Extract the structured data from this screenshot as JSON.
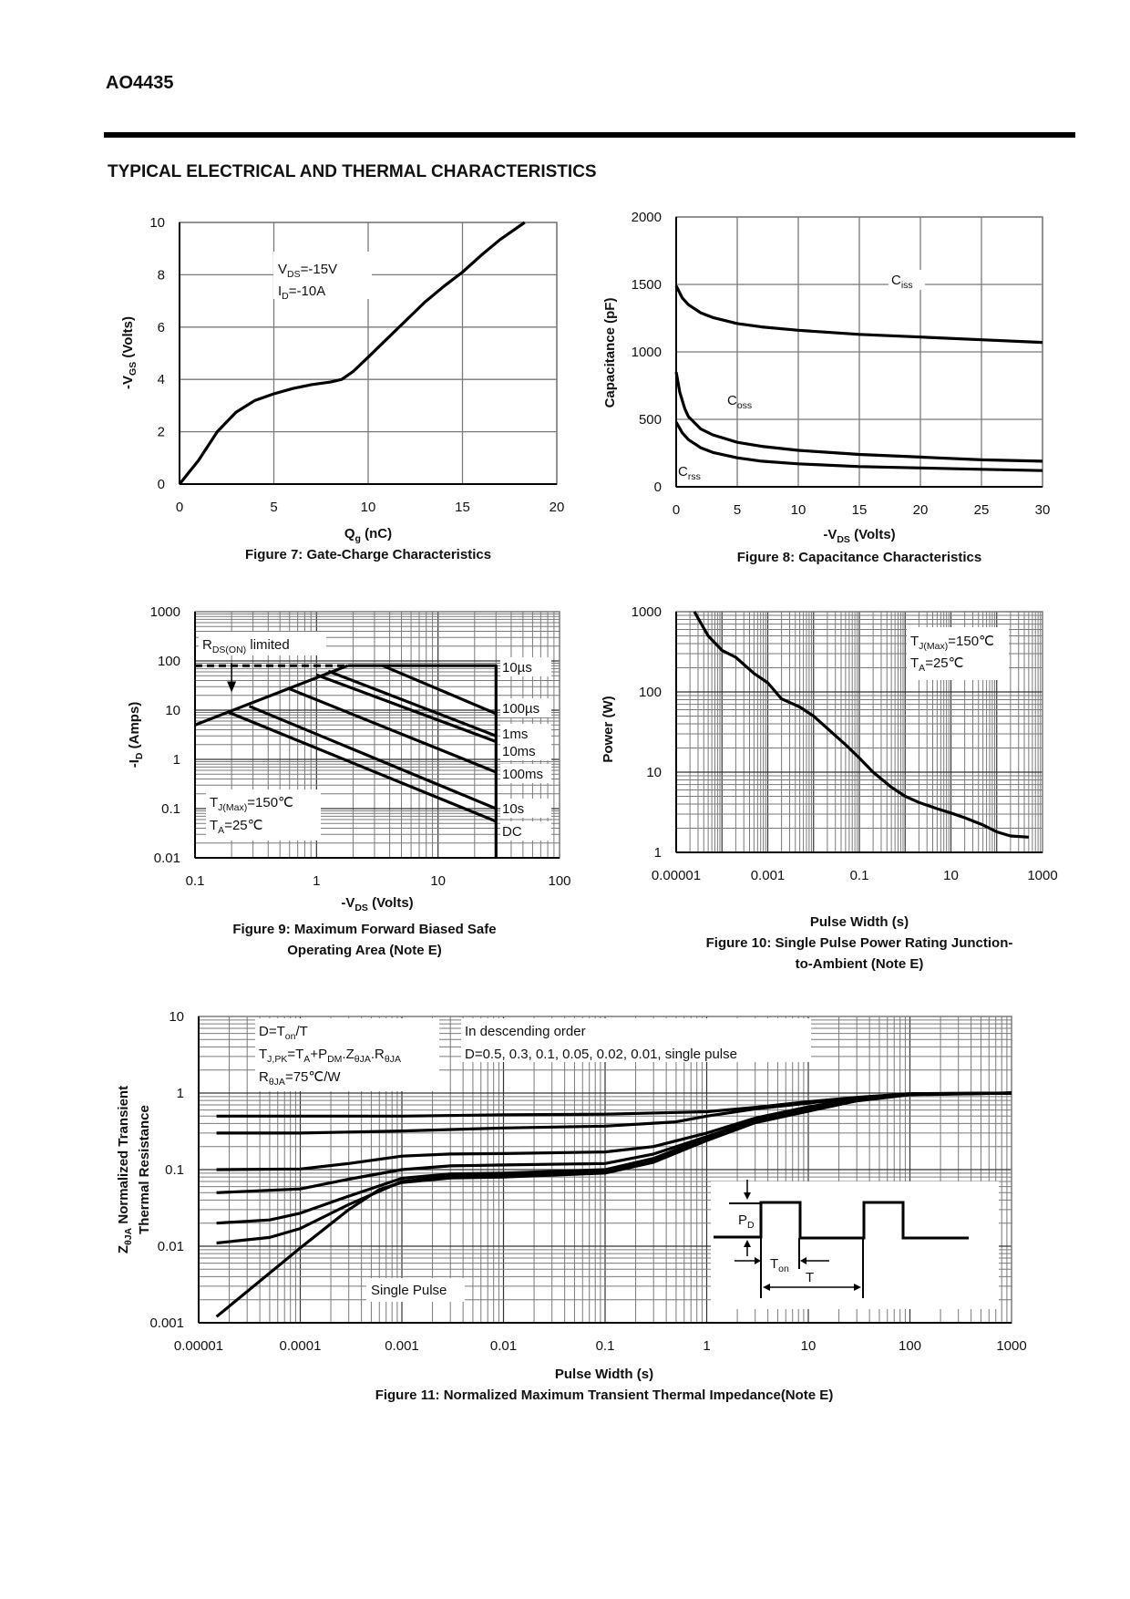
{
  "header": {
    "part_number": "AO4435",
    "section_title": "TYPICAL ELECTRICAL AND THERMAL CHARACTERISTICS"
  },
  "colors": {
    "curve": "#000000",
    "grid": "#7a7a7a",
    "background": "#ffffff"
  },
  "chart_data": [
    {
      "type": "line",
      "caption": "Figure 7: Gate-Charge Characteristics",
      "xlabel": {
        "main": "Q",
        "sub": "g",
        "rest": " (nC)"
      },
      "ylabel": {
        "main": "-V",
        "sub": "GS",
        "rest": " (Volts)"
      },
      "xscale": "linear",
      "yscale": "linear",
      "xlim": [
        0,
        20
      ],
      "ylim": [
        0,
        10
      ],
      "xticks": [
        "0",
        "5",
        "10",
        "15",
        "20"
      ],
      "xtick_values": [
        0,
        5,
        10,
        15,
        20
      ],
      "yticks": [
        "0",
        "2",
        "4",
        "6",
        "8",
        "10"
      ],
      "ytick_values": [
        0,
        2,
        4,
        6,
        8,
        10
      ],
      "grid": true,
      "annotations": [
        {
          "main": "V",
          "sub": "DS",
          "rest": "=-15V"
        },
        {
          "main": "I",
          "sub": "D",
          "rest": "=-10A"
        }
      ],
      "series": [
        {
          "x": [
            0,
            1,
            2,
            3,
            4,
            5,
            6,
            7,
            8,
            8.6,
            9.2,
            10,
            11,
            12,
            13,
            14,
            15,
            16,
            17,
            18.3
          ],
          "y": [
            0,
            0.9,
            2.0,
            2.75,
            3.2,
            3.45,
            3.65,
            3.8,
            3.9,
            4.0,
            4.3,
            4.85,
            5.55,
            6.25,
            6.95,
            7.55,
            8.1,
            8.75,
            9.35,
            10
          ]
        }
      ]
    },
    {
      "type": "line",
      "caption": "Figure 8: Capacitance Characteristics",
      "xlabel": {
        "main": "-V",
        "sub": "DS",
        "rest": " (Volts)"
      },
      "ylabel": {
        "main": "Capacitance (pF)",
        "sub": "",
        "rest": ""
      },
      "xscale": "linear",
      "yscale": "linear",
      "xlim": [
        0,
        30
      ],
      "ylim": [
        0,
        2000
      ],
      "xticks": [
        "0",
        "5",
        "10",
        "15",
        "20",
        "25",
        "30"
      ],
      "xtick_values": [
        0,
        5,
        10,
        15,
        20,
        25,
        30
      ],
      "yticks": [
        "0",
        "500",
        "1000",
        "1500",
        "2000"
      ],
      "ytick_values": [
        0,
        500,
        1000,
        1500,
        2000
      ],
      "grid": true,
      "series": [
        {
          "name": {
            "main": "C",
            "sub": "iss"
          },
          "x": [
            0,
            0.5,
            1,
            2,
            3,
            5,
            7,
            10,
            15,
            20,
            25,
            30
          ],
          "y": [
            1490,
            1400,
            1350,
            1290,
            1255,
            1210,
            1185,
            1160,
            1130,
            1110,
            1090,
            1070
          ]
        },
        {
          "name": {
            "main": "C",
            "sub": "oss"
          },
          "x": [
            0,
            0.3,
            0.7,
            1,
            2,
            3,
            5,
            7,
            10,
            15,
            20,
            25,
            30
          ],
          "y": [
            850,
            700,
            580,
            520,
            430,
            385,
            330,
            300,
            270,
            240,
            220,
            200,
            190
          ]
        },
        {
          "name": {
            "main": "C",
            "sub": "rss"
          },
          "x": [
            0,
            0.5,
            1,
            2,
            3,
            5,
            7,
            10,
            15,
            20,
            25,
            30
          ],
          "y": [
            480,
            400,
            350,
            290,
            255,
            215,
            190,
            170,
            150,
            140,
            130,
            120
          ]
        }
      ]
    },
    {
      "type": "line",
      "caption": [
        "Figure 9: Maximum Forward Biased Safe",
        "Operating Area (Note E)"
      ],
      "xlabel": {
        "main": "-V",
        "sub": "DS",
        "rest": " (Volts)"
      },
      "ylabel": {
        "main": "-I",
        "sub": "D",
        "rest": " (Amps)"
      },
      "xscale": "log",
      "yscale": "log",
      "xlim": [
        0.1,
        100
      ],
      "ylim": [
        0.01,
        1000
      ],
      "xticks": [
        "0.1",
        "1",
        "10",
        "100"
      ],
      "xtick_values": [
        0.1,
        1,
        10,
        100
      ],
      "yticks": [
        "0.01",
        "0.1",
        "1",
        "10",
        "100",
        "1000"
      ],
      "ytick_values": [
        0.01,
        0.1,
        1,
        10,
        100,
        1000
      ],
      "grid": true,
      "annotations": [
        {
          "main": "R",
          "sub": "DS(ON)",
          "rest": " limited"
        },
        {
          "main": "T",
          "sub": "J(Max)",
          "rest": "=150℃"
        },
        {
          "main": "T",
          "sub": "A",
          "rest": "=25℃"
        }
      ],
      "rds_limit": {
        "x": [
          0.1,
          1.8
        ],
        "y": [
          5,
          80
        ]
      },
      "current_limit": {
        "x": [
          0.1,
          30
        ],
        "y": 80
      },
      "series": [
        {
          "name": "10µs",
          "x": [
            1.8,
            30,
            30
          ],
          "y": [
            80,
            80,
            0.01
          ]
        },
        {
          "name": "100µs",
          "x": [
            3.5,
            30
          ],
          "y": [
            80,
            8.5
          ]
        },
        {
          "name": "1ms",
          "x": [
            1.25,
            30
          ],
          "y": [
            62,
            3.0
          ]
        },
        {
          "name": "10ms",
          "x": [
            1.0,
            30
          ],
          "y": [
            52,
            2.3
          ]
        },
        {
          "name": "100ms",
          "x": [
            0.6,
            30
          ],
          "y": [
            27,
            0.55
          ]
        },
        {
          "name": "10s",
          "x": [
            0.28,
            30
          ],
          "y": [
            12,
            0.1
          ]
        },
        {
          "name": "DC",
          "x": [
            0.19,
            30
          ],
          "y": [
            9,
            0.055
          ]
        }
      ]
    },
    {
      "type": "line",
      "caption": [
        "Figure 10: Single Pulse Power Rating Junction-",
        "to-Ambient (Note E)"
      ],
      "xlabel": {
        "main": "Pulse Width (s)",
        "sub": "",
        "rest": ""
      },
      "ylabel": {
        "main": "Power (W)",
        "sub": "",
        "rest": ""
      },
      "xscale": "log",
      "yscale": "log",
      "xlim": [
        1e-05,
        1000
      ],
      "ylim": [
        1,
        1000
      ],
      "xticks": [
        "0.00001",
        "0.001",
        "0.1",
        "10",
        "1000"
      ],
      "xtick_values": [
        1e-05,
        0.001,
        0.1,
        10,
        1000
      ],
      "yticks": [
        "1",
        "10",
        "100",
        "1000"
      ],
      "ytick_values": [
        1,
        10,
        100,
        1000
      ],
      "grid": true,
      "annotations": [
        {
          "main": "T",
          "sub": "J(Max)",
          "rest": "=150℃"
        },
        {
          "main": "T",
          "sub": "A",
          "rest": "=25℃"
        }
      ],
      "series": [
        {
          "x": [
            2.5e-05,
            5e-05,
            0.0001,
            0.0002,
            0.0005,
            0.001,
            0.002,
            0.005,
            0.01,
            0.02,
            0.05,
            0.1,
            0.2,
            0.5,
            1,
            2,
            5,
            10,
            20,
            50,
            100,
            200,
            500
          ],
          "y": [
            1000,
            500,
            330,
            270,
            170,
            130,
            82,
            65,
            50,
            35,
            22,
            15,
            10,
            6.5,
            5,
            4.2,
            3.5,
            3.1,
            2.7,
            2.2,
            1.8,
            1.6,
            1.55
          ]
        }
      ]
    },
    {
      "type": "line",
      "caption": "Figure 11: Normalized Maximum Transient Thermal Impedance(Note E)",
      "xlabel": {
        "main": "Pulse Width (s)",
        "sub": "",
        "rest": ""
      },
      "ylabel": [
        {
          "main": "Z",
          "sub": "θJA",
          "rest": " Normalized Transient"
        },
        {
          "main": "Thermal Resistance",
          "sub": "",
          "rest": ""
        }
      ],
      "xscale": "log",
      "yscale": "log",
      "xlim": [
        1e-05,
        1000
      ],
      "ylim": [
        0.001,
        10
      ],
      "xticks": [
        "0.00001",
        "0.0001",
        "0.001",
        "0.01",
        "0.1",
        "1",
        "10",
        "100",
        "1000"
      ],
      "xtick_values": [
        1e-05,
        0.0001,
        0.001,
        0.01,
        0.1,
        1,
        10,
        100,
        1000
      ],
      "yticks": [
        "0.001",
        "0.01",
        "0.1",
        "1",
        "10"
      ],
      "ytick_values": [
        0.001,
        0.01,
        0.1,
        1,
        10
      ],
      "grid": true,
      "annotations": [
        {
          "main": "D=T",
          "sub": "on",
          "rest": "/T"
        },
        {
          "main": "T",
          "sub": "J,PK",
          "rest": "=T",
          "sub2": "A",
          "rest2": "+P",
          "sub3": "DM",
          "rest3": ".Z",
          "sub4": "θJA",
          "rest4": ".R",
          "sub5": "θJA"
        },
        {
          "main": "R",
          "sub": "θJA",
          "rest": "=75℃/W"
        },
        {
          "main": "In descending order",
          "sub": "",
          "rest": ""
        },
        {
          "main": "D=0.5, 0.3, 0.1, 0.05, 0.02, 0.01, single pulse",
          "sub": "",
          "rest": ""
        },
        {
          "main": "Single Pulse",
          "sub": "",
          "rest": ""
        }
      ],
      "inset": {
        "pd": {
          "main": "P",
          "sub": "D"
        },
        "ton": {
          "main": "T",
          "sub": "on"
        },
        "t": "T"
      },
      "series": [
        {
          "name": "D=0.5",
          "x": [
            1.5e-05,
            0.001,
            0.01,
            0.1,
            1,
            3,
            10,
            30,
            100,
            1000
          ],
          "y": [
            0.5,
            0.5,
            0.52,
            0.53,
            0.57,
            0.65,
            0.77,
            0.88,
            0.98,
            1.0
          ]
        },
        {
          "name": "D=0.3",
          "x": [
            1.5e-05,
            0.0001,
            0.001,
            0.01,
            0.1,
            0.5,
            1,
            3,
            10,
            30,
            100,
            1000
          ],
          "y": [
            0.3,
            0.3,
            0.32,
            0.35,
            0.37,
            0.42,
            0.5,
            0.62,
            0.74,
            0.86,
            0.98,
            1.0
          ]
        },
        {
          "name": "D=0.1",
          "x": [
            1.5e-05,
            0.0001,
            0.0003,
            0.001,
            0.003,
            0.01,
            0.1,
            0.3,
            1,
            3,
            10,
            30,
            100,
            1000
          ],
          "y": [
            0.1,
            0.102,
            0.12,
            0.15,
            0.16,
            0.162,
            0.17,
            0.2,
            0.3,
            0.47,
            0.66,
            0.84,
            0.97,
            1.0
          ]
        },
        {
          "name": "D=0.05",
          "x": [
            1.5e-05,
            0.0001,
            0.0003,
            0.001,
            0.003,
            0.01,
            0.1,
            0.3,
            1,
            3,
            10,
            30,
            100,
            1000
          ],
          "y": [
            0.05,
            0.056,
            0.075,
            0.1,
            0.112,
            0.115,
            0.12,
            0.16,
            0.27,
            0.44,
            0.63,
            0.82,
            0.96,
            1.0
          ]
        },
        {
          "name": "D=0.02",
          "x": [
            1.5e-05,
            5e-05,
            0.0001,
            0.0003,
            0.001,
            0.003,
            0.01,
            0.1,
            0.3,
            1,
            3,
            10,
            30,
            100,
            1000
          ],
          "y": [
            0.02,
            0.022,
            0.027,
            0.045,
            0.077,
            0.088,
            0.09,
            0.1,
            0.14,
            0.26,
            0.43,
            0.61,
            0.81,
            0.96,
            1.0
          ]
        },
        {
          "name": "D=0.01",
          "x": [
            1.5e-05,
            5e-05,
            0.0001,
            0.0003,
            0.001,
            0.003,
            0.01,
            0.1,
            0.3,
            1,
            3,
            10,
            30,
            100,
            1000
          ],
          "y": [
            0.011,
            0.013,
            0.017,
            0.035,
            0.07,
            0.082,
            0.085,
            0.095,
            0.13,
            0.25,
            0.42,
            0.6,
            0.8,
            0.96,
            1.0
          ]
        },
        {
          "name": "single pulse",
          "x": [
            1.5e-05,
            0.0001,
            0.0003,
            0.0006,
            0.001,
            0.003,
            0.01,
            0.1,
            0.3,
            1,
            3,
            10,
            30,
            100,
            1000
          ],
          "y": [
            0.0012,
            0.0095,
            0.03,
            0.055,
            0.068,
            0.078,
            0.08,
            0.09,
            0.125,
            0.24,
            0.41,
            0.58,
            0.79,
            0.95,
            1.0
          ]
        }
      ]
    }
  ]
}
